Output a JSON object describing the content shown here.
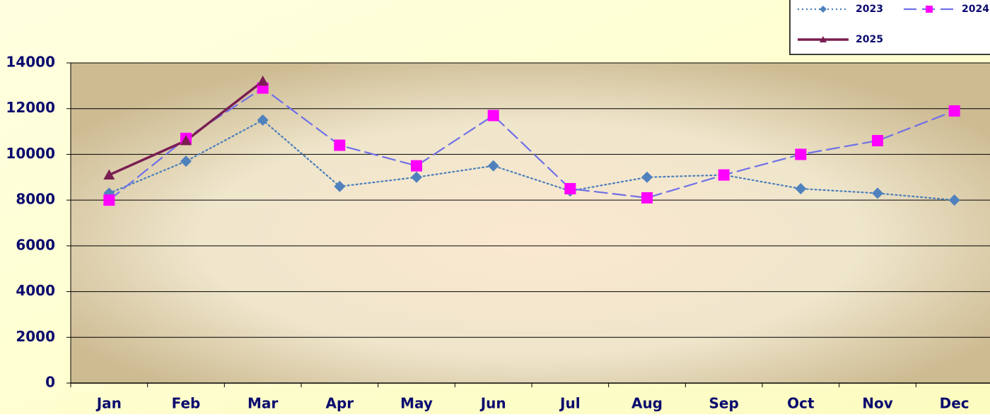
{
  "chart_data": {
    "type": "line",
    "categories": [
      "Jan",
      "Feb",
      "Mar",
      "Apr",
      "May",
      "Jun",
      "Jul",
      "Aug",
      "Sep",
      "Oct",
      "Nov",
      "Dec"
    ],
    "series": [
      {
        "name": "2023",
        "color": "#4a7ebb",
        "marker_color": "#4f81bd",
        "marker": "diamond",
        "line_style": "dotted",
        "values": [
          8300,
          9700,
          11500,
          8600,
          9000,
          9500,
          8400,
          9000,
          9100,
          8500,
          8300,
          8000
        ]
      },
      {
        "name": "2024",
        "color": "#7070e8",
        "marker_color": "#ff00ff",
        "marker": "square",
        "line_style": "dashed",
        "values": [
          8000,
          10700,
          12900,
          10400,
          9500,
          11700,
          8500,
          8100,
          9100,
          10000,
          10600,
          11900
        ]
      },
      {
        "name": "2025",
        "color": "#7a1e52",
        "marker_color": "#7a1e52",
        "marker": "triangle",
        "line_style": "solid",
        "values": [
          9100,
          10600,
          13200,
          null,
          null,
          null,
          null,
          null,
          null,
          null,
          null,
          null
        ]
      }
    ],
    "ylim": [
      0,
      14000
    ],
    "yticks": [
      0,
      2000,
      4000,
      6000,
      8000,
      10000,
      12000,
      14000
    ],
    "grid": true,
    "legend": "top-right"
  }
}
